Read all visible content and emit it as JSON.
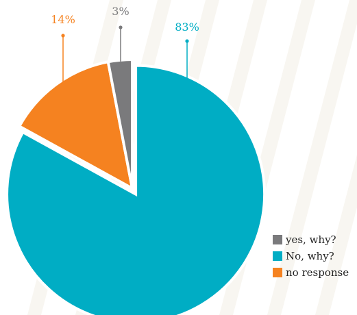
{
  "chart_data": {
    "type": "pie",
    "title": "",
    "slices": [
      {
        "label": "yes, why?",
        "value": 3,
        "value_label": "3%",
        "color": "#7a7a7c",
        "exploded": false
      },
      {
        "label": "No, why?",
        "value": 83,
        "value_label": "83%",
        "color": "#00adc4",
        "exploded": true
      },
      {
        "label": "no response",
        "value": 14,
        "value_label": "14%",
        "color": "#f58220",
        "exploded": false
      }
    ],
    "legend_position": "bottom-right",
    "background_watermark": "light-stripes"
  }
}
